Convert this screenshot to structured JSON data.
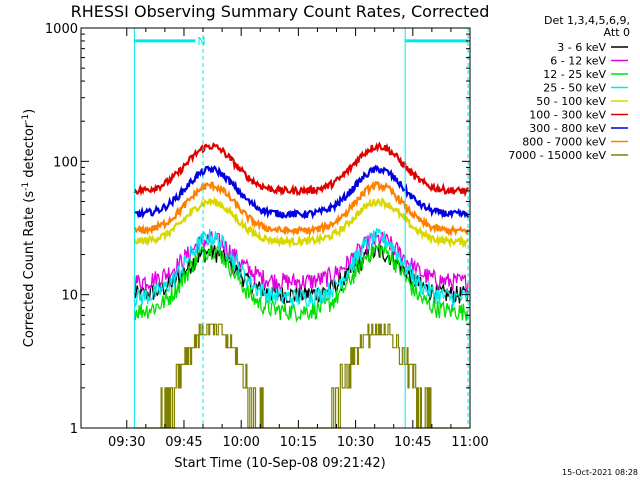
{
  "chart_data": {
    "type": "line",
    "title": "RHESSI Observing Summary Count Rates, Corrected",
    "xlabel": "Start Time (10-Sep-08 09:21:42)",
    "ylabel_parts": [
      "Corrected Count Rate (s",
      "-1",
      " detector",
      "-1",
      ")"
    ],
    "yscale": "log",
    "ylim": [
      1,
      1000
    ],
    "xlim": [
      "09:18",
      "11:00"
    ],
    "x_ticks": [
      "09:30",
      "09:45",
      "10:00",
      "10:15",
      "10:30",
      "10:45",
      "11:00"
    ],
    "x_tick_minutes": [
      570,
      585,
      600,
      615,
      630,
      645,
      660
    ],
    "y_ticks": [
      {
        "value": 1,
        "label": "1"
      },
      {
        "value": 10,
        "label": "10"
      },
      {
        "value": 100,
        "label": "100"
      },
      {
        "value": 1000,
        "label": "1000"
      }
    ],
    "legend_header": [
      "Det 1,3,4,5,6,9,",
      "Att 0"
    ],
    "legend_placement": "right, outside plot",
    "orbit_peaks_minutes": [
      592,
      636
    ],
    "series": [
      {
        "name": "3 - 6 keV",
        "color": "#000000",
        "base": 10,
        "peak": 21
      },
      {
        "name": "6 - 12 keV",
        "color": "#e000e0",
        "base": 12.5,
        "peak": 26
      },
      {
        "name": "12 - 25 keV",
        "color": "#00e000",
        "base": 7.5,
        "peak": 22
      },
      {
        "name": "25 - 50 keV",
        "color": "#00e8e8",
        "base": 9.5,
        "peak": 27
      },
      {
        "name": "50 - 100 keV",
        "color": "#d8d800",
        "base": 25,
        "peak": 50
      },
      {
        "name": "100 - 300 keV",
        "color": "#e00000",
        "base": 60,
        "peak": 130
      },
      {
        "name": "300 - 800 keV",
        "color": "#0000e0",
        "base": 40,
        "peak": 87
      },
      {
        "name": "800 - 7000 keV",
        "color": "#ff8000",
        "base": 30,
        "peak": 66
      },
      {
        "name": "7000 - 15000 keV",
        "color": "#808000",
        "base": 1,
        "peak": 5
      }
    ],
    "markers": {
      "color": "#00e8e8",
      "solid_lines_minutes": [
        572,
        643
      ],
      "dashed_lines_minutes": [
        590,
        659.5
      ],
      "bars_minutes": [
        [
          572,
          588
        ],
        [
          643,
          659.5
        ]
      ],
      "bar_level": 800,
      "bar_label": "N"
    }
  },
  "footer": {
    "timestamp": "15-Oct-2021 08:28"
  }
}
